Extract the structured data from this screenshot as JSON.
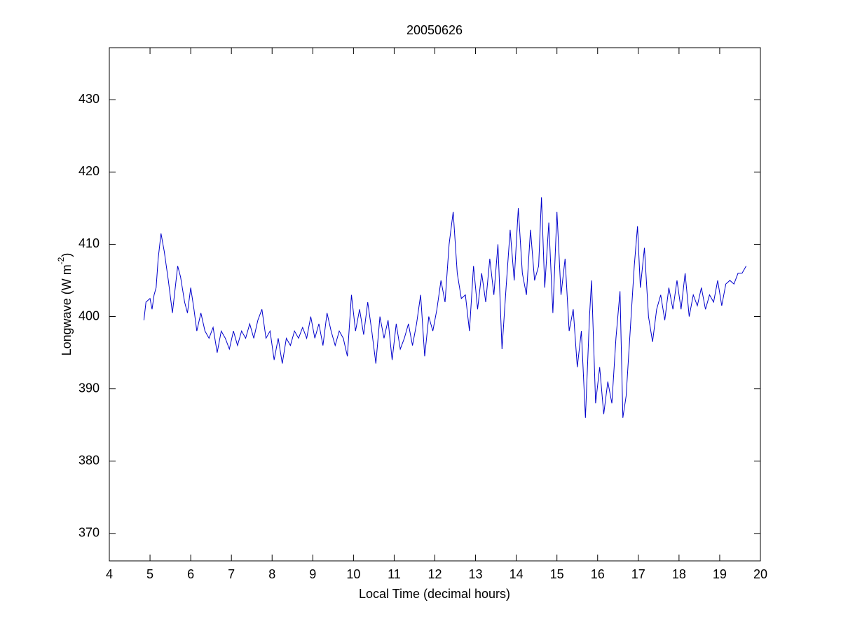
{
  "chart_data": {
    "type": "line",
    "title": "20050626",
    "xlabel": "Local Time (decimal hours)",
    "ylabel": [
      "Longwave (W m",
      "-2",
      ")"
    ],
    "xlim": [
      4,
      20
    ],
    "ylim": [
      366.2,
      437.2
    ],
    "xticks": [
      4,
      5,
      6,
      7,
      8,
      9,
      10,
      11,
      12,
      13,
      14,
      15,
      16,
      17,
      18,
      19,
      20
    ],
    "yticks": [
      370,
      380,
      390,
      400,
      410,
      420,
      430
    ],
    "grid": false,
    "series": [
      {
        "color": "#0000cc",
        "x": [
          4.85,
          4.9,
          5.0,
          5.05,
          5.1,
          5.15,
          5.2,
          5.27,
          5.35,
          5.45,
          5.55,
          5.62,
          5.68,
          5.75,
          5.85,
          5.92,
          6.0,
          6.08,
          6.15,
          6.25,
          6.35,
          6.45,
          6.55,
          6.65,
          6.75,
          6.85,
          6.95,
          7.05,
          7.15,
          7.25,
          7.35,
          7.45,
          7.55,
          7.65,
          7.75,
          7.85,
          7.95,
          8.05,
          8.15,
          8.25,
          8.35,
          8.45,
          8.55,
          8.65,
          8.75,
          8.85,
          8.95,
          9.05,
          9.15,
          9.25,
          9.35,
          9.45,
          9.55,
          9.65,
          9.75,
          9.85,
          9.95,
          10.05,
          10.15,
          10.25,
          10.35,
          10.45,
          10.55,
          10.65,
          10.75,
          10.85,
          10.95,
          11.05,
          11.15,
          11.25,
          11.35,
          11.45,
          11.55,
          11.65,
          11.75,
          11.85,
          11.95,
          12.05,
          12.15,
          12.25,
          12.35,
          12.45,
          12.55,
          12.65,
          12.75,
          12.85,
          12.95,
          13.05,
          13.15,
          13.25,
          13.35,
          13.45,
          13.55,
          13.65,
          13.75,
          13.85,
          13.95,
          14.05,
          14.15,
          14.25,
          14.35,
          14.45,
          14.55,
          14.62,
          14.7,
          14.8,
          14.9,
          15.0,
          15.1,
          15.2,
          15.3,
          15.4,
          15.5,
          15.6,
          15.7,
          15.8,
          15.85,
          15.95,
          16.05,
          16.15,
          16.25,
          16.35,
          16.45,
          16.55,
          16.62,
          16.7,
          16.8,
          16.9,
          16.98,
          17.05,
          17.15,
          17.25,
          17.35,
          17.45,
          17.55,
          17.65,
          17.75,
          17.85,
          17.95,
          18.05,
          18.15,
          18.25,
          18.35,
          18.45,
          18.55,
          18.65,
          18.75,
          18.85,
          18.95,
          19.05,
          19.15,
          19.25,
          19.35,
          19.45,
          19.55,
          19.65
        ],
        "values": [
          399.5,
          402,
          402.5,
          401,
          403,
          404,
          408,
          411.5,
          409,
          405,
          400.5,
          404,
          407,
          405.5,
          402,
          400.5,
          404,
          401,
          398,
          400.5,
          398,
          397,
          398.5,
          395,
          398,
          397,
          395.5,
          398,
          396,
          398,
          397,
          399,
          397,
          399.5,
          401,
          397,
          398,
          394,
          397,
          393.5,
          397,
          396,
          398,
          397,
          398.5,
          397,
          400,
          397,
          399,
          396,
          400.5,
          398,
          396,
          398,
          397,
          394.5,
          403,
          398,
          401,
          397.5,
          402,
          398,
          393.5,
          400,
          397,
          399.5,
          394,
          399,
          395.5,
          397,
          399,
          396,
          399,
          403,
          394.5,
          400,
          398,
          401,
          405,
          402,
          410,
          414.5,
          406,
          402.5,
          403,
          398,
          407,
          401,
          406,
          402,
          408,
          403,
          410,
          395.5,
          404,
          412,
          405,
          415,
          406,
          403,
          412,
          405,
          407,
          416.5,
          404,
          413,
          400.5,
          414.5,
          403,
          408,
          398,
          401,
          393,
          398,
          386,
          400,
          405,
          388,
          393,
          386.5,
          391,
          388,
          397,
          403.5,
          386,
          389,
          398,
          407,
          412.5,
          404,
          409.5,
          400,
          396.5,
          401,
          403,
          399.5,
          404,
          401,
          405,
          401,
          406,
          400,
          403,
          401.5,
          404,
          401,
          403,
          402,
          405,
          401.5,
          404.5,
          405,
          404.5,
          406,
          406,
          407
        ]
      }
    ]
  }
}
